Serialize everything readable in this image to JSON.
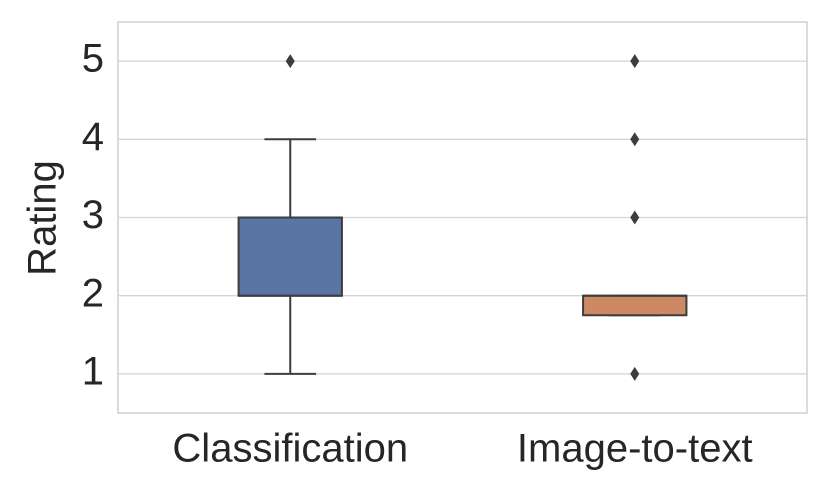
{
  "chart_data": {
    "type": "box",
    "y_label": "Rating",
    "categories": [
      "Classification",
      "Image-to-text"
    ],
    "boxes": [
      {
        "whislo": 1,
        "q1": 2,
        "med": 2,
        "q3": 3,
        "whishi": 4,
        "fliers": [
          5
        ]
      },
      {
        "whislo": 1.75,
        "q1": 1.75,
        "med": 2,
        "q3": 2,
        "whishi": 2,
        "fliers": [
          1,
          3,
          4,
          5
        ]
      }
    ],
    "colors": [
      "#5875a4",
      "#cc8963"
    ],
    "ylim": [
      0.5,
      5.5
    ],
    "yticks": [
      1,
      2,
      3,
      4,
      5
    ],
    "grid": true
  }
}
